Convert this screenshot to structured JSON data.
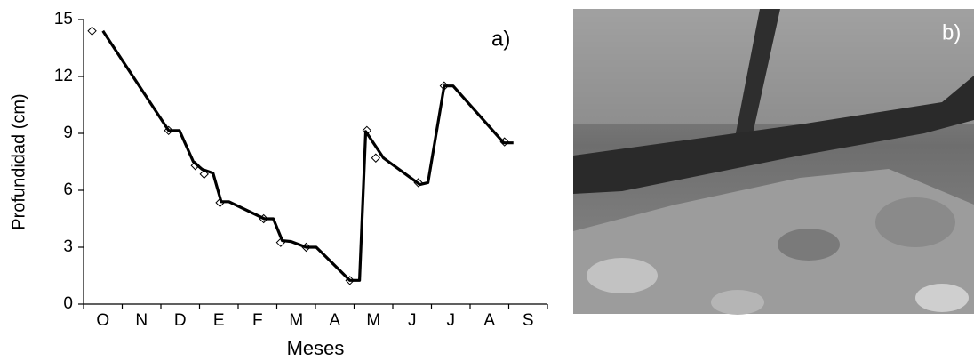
{
  "chart_data": {
    "type": "line",
    "label": "a)",
    "photo_label": "b)",
    "x_label": "Meses",
    "y_label": "Profundidad (cm)",
    "categories": [
      "O",
      "N",
      "D",
      "E",
      "F",
      "M",
      "A",
      "M",
      "J",
      "J",
      "A",
      "S"
    ],
    "xlim": [
      -0.5,
      11.5
    ],
    "ylim": [
      0,
      15
    ],
    "yticks": [
      0,
      3,
      6,
      9,
      12,
      15
    ],
    "series": [
      {
        "color": "#000000",
        "marker": "diamond",
        "x": [
          -0.28,
          1.7,
          2.39,
          2.62,
          3.03,
          4.16,
          4.6,
          5.26,
          6.39,
          6.83,
          7.06,
          8.16,
          8.83,
          10.39
        ],
        "values": [
          14.4,
          9.15,
          7.3,
          6.85,
          5.35,
          4.5,
          3.25,
          3.0,
          1.25,
          9.15,
          7.7,
          6.4,
          11.5,
          8.55
        ]
      },
      {
        "color": "#000000",
        "marker": "none",
        "x": [
          0,
          1.7,
          1.98,
          2.34,
          2.57,
          2.85,
          3.06,
          3.26,
          4.18,
          4.41,
          4.64,
          4.87,
          5.26,
          5.52,
          6.39,
          6.64,
          6.8,
          7.26,
          8.2,
          8.41,
          8.83,
          9.06,
          10.37,
          10.62
        ],
        "values": [
          14.4,
          9.15,
          9.15,
          7.5,
          7.1,
          6.9,
          5.4,
          5.4,
          4.5,
          4.5,
          3.35,
          3.3,
          3.0,
          3.0,
          1.25,
          1.25,
          9.1,
          7.7,
          6.3,
          6.4,
          11.5,
          11.5,
          8.5,
          8.5
        ]
      }
    ]
  }
}
